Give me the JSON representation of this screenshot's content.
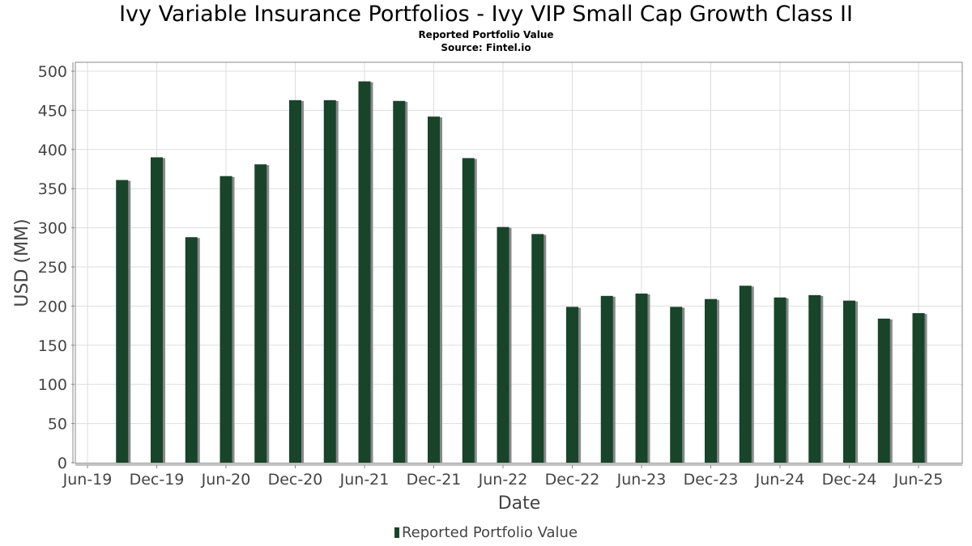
{
  "header": {
    "title": "Ivy Variable Insurance Portfolios - Ivy VIP Small Cap Growth Class II",
    "subtitle": "Reported Portfolio Value",
    "source": "Source: Fintel.io"
  },
  "legend": {
    "label": "Reported Portfolio Value"
  },
  "colors": {
    "bar": "#18442a",
    "shadow": "#888888",
    "grid": "#dddddd",
    "axis": "#888888"
  },
  "chart_data": {
    "type": "bar",
    "title": "Ivy Variable Insurance Portfolios - Ivy VIP Small Cap Growth Class II",
    "subtitle": "Reported Portfolio Value",
    "source": "Source: Fintel.io",
    "xlabel": "Date",
    "ylabel": "USD (MM)",
    "ylim": [
      0,
      500
    ],
    "yticks": [
      0,
      50,
      100,
      150,
      200,
      250,
      300,
      350,
      400,
      450,
      500
    ],
    "xticks": [
      "Jun-19",
      "Dec-19",
      "Jun-20",
      "Dec-20",
      "Jun-21",
      "Dec-21",
      "Jun-22",
      "Dec-22",
      "Jun-23",
      "Dec-23",
      "Jun-24",
      "Dec-24",
      "Jun-25"
    ],
    "grid": true,
    "legend_position": "bottom-center",
    "categories": [
      "Sep-19",
      "Dec-19",
      "Mar-20",
      "Jun-20",
      "Sep-20",
      "Dec-20",
      "Mar-21",
      "Jun-21",
      "Sep-21",
      "Dec-21",
      "Mar-22",
      "Jun-22",
      "Sep-22",
      "Dec-22",
      "Mar-23",
      "Jun-23",
      "Sep-23",
      "Dec-23",
      "Mar-24",
      "Jun-24",
      "Sep-24",
      "Dec-24",
      "Mar-25",
      "Jun-25"
    ],
    "series": [
      {
        "name": "Reported Portfolio Value",
        "values": [
          361,
          390,
          288,
          366,
          381,
          463,
          463,
          487,
          462,
          442,
          389,
          301,
          292,
          199,
          213,
          216,
          199,
          209,
          226,
          211,
          214,
          207,
          184,
          191
        ]
      }
    ]
  }
}
